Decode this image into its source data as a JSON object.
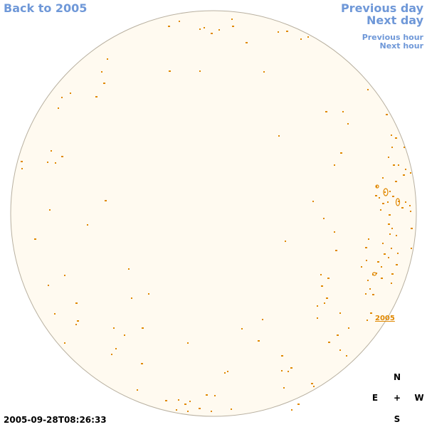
{
  "nav": {
    "back_label": "Back to 2005",
    "previous_day_label": "Previous day",
    "next_day_label": "Next day",
    "previous_hour_label": "Previous hour",
    "next_hour_label": "Next hour"
  },
  "compass": {
    "north": "N",
    "east": "E",
    "center": "+",
    "west": "W",
    "south": "S"
  },
  "timestamp": "2005-09-28T08:26:33",
  "active_region_label": "2005",
  "colors": {
    "link": "#6f98d8",
    "disk_fill": "#fffaf0",
    "disk_edge": "#b8b0a0",
    "spot": "#e08800"
  }
}
